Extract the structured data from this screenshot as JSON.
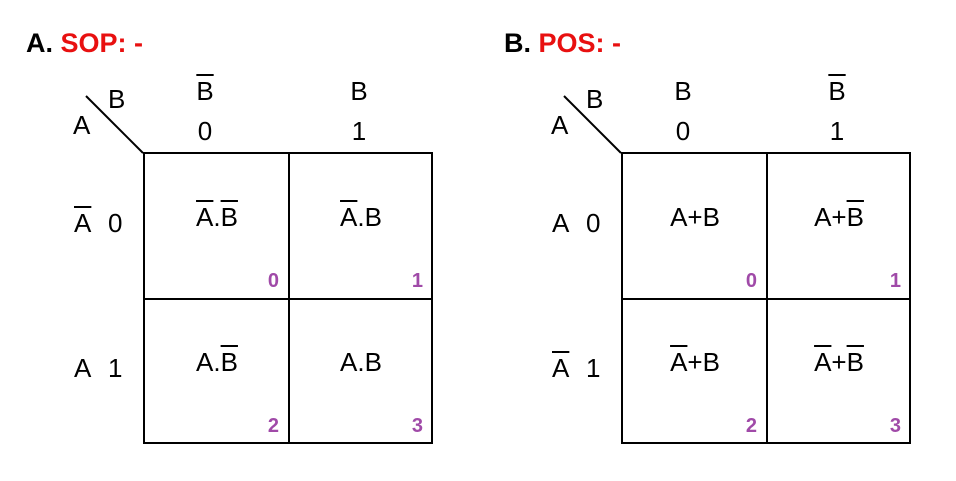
{
  "sop": {
    "title_letter": "A.",
    "title_kind": "SOP: -",
    "col_var": "B",
    "row_var": "A",
    "cols": [
      {
        "var": "B",
        "bar": true,
        "bit": "0"
      },
      {
        "var": "B",
        "bar": false,
        "bit": "1"
      }
    ],
    "rows": [
      {
        "var": "A",
        "bar": true,
        "bit": "0"
      },
      {
        "var": "A",
        "bar": false,
        "bit": "1"
      }
    ],
    "cells": [
      {
        "index": "0",
        "terms": [
          {
            "t": "A",
            "bar": true
          },
          {
            "t": "."
          },
          {
            "t": "B",
            "bar": true
          }
        ]
      },
      {
        "index": "1",
        "terms": [
          {
            "t": "A",
            "bar": true
          },
          {
            "t": ".B"
          }
        ]
      },
      {
        "index": "2",
        "terms": [
          {
            "t": "A."
          },
          {
            "t": "B",
            "bar": true
          }
        ]
      },
      {
        "index": "3",
        "terms": [
          {
            "t": "A.B"
          }
        ]
      }
    ]
  },
  "pos": {
    "title_letter": "B.",
    "title_kind": "POS: -",
    "col_var": "B",
    "row_var": "A",
    "cols": [
      {
        "var": "B",
        "bar": false,
        "bit": "0"
      },
      {
        "var": "B",
        "bar": true,
        "bit": "1"
      }
    ],
    "rows": [
      {
        "var": "A",
        "bar": false,
        "bit": "0"
      },
      {
        "var": "A",
        "bar": true,
        "bit": "1"
      }
    ],
    "cells": [
      {
        "index": "0",
        "terms": [
          {
            "t": "A+B"
          }
        ]
      },
      {
        "index": "1",
        "terms": [
          {
            "t": "A+"
          },
          {
            "t": "B",
            "bar": true
          }
        ]
      },
      {
        "index": "2",
        "terms": [
          {
            "t": "A",
            "bar": true
          },
          {
            "t": "+B"
          }
        ]
      },
      {
        "index": "3",
        "terms": [
          {
            "t": "A",
            "bar": true
          },
          {
            "t": "+"
          },
          {
            "t": "B",
            "bar": true
          }
        ]
      }
    ]
  }
}
